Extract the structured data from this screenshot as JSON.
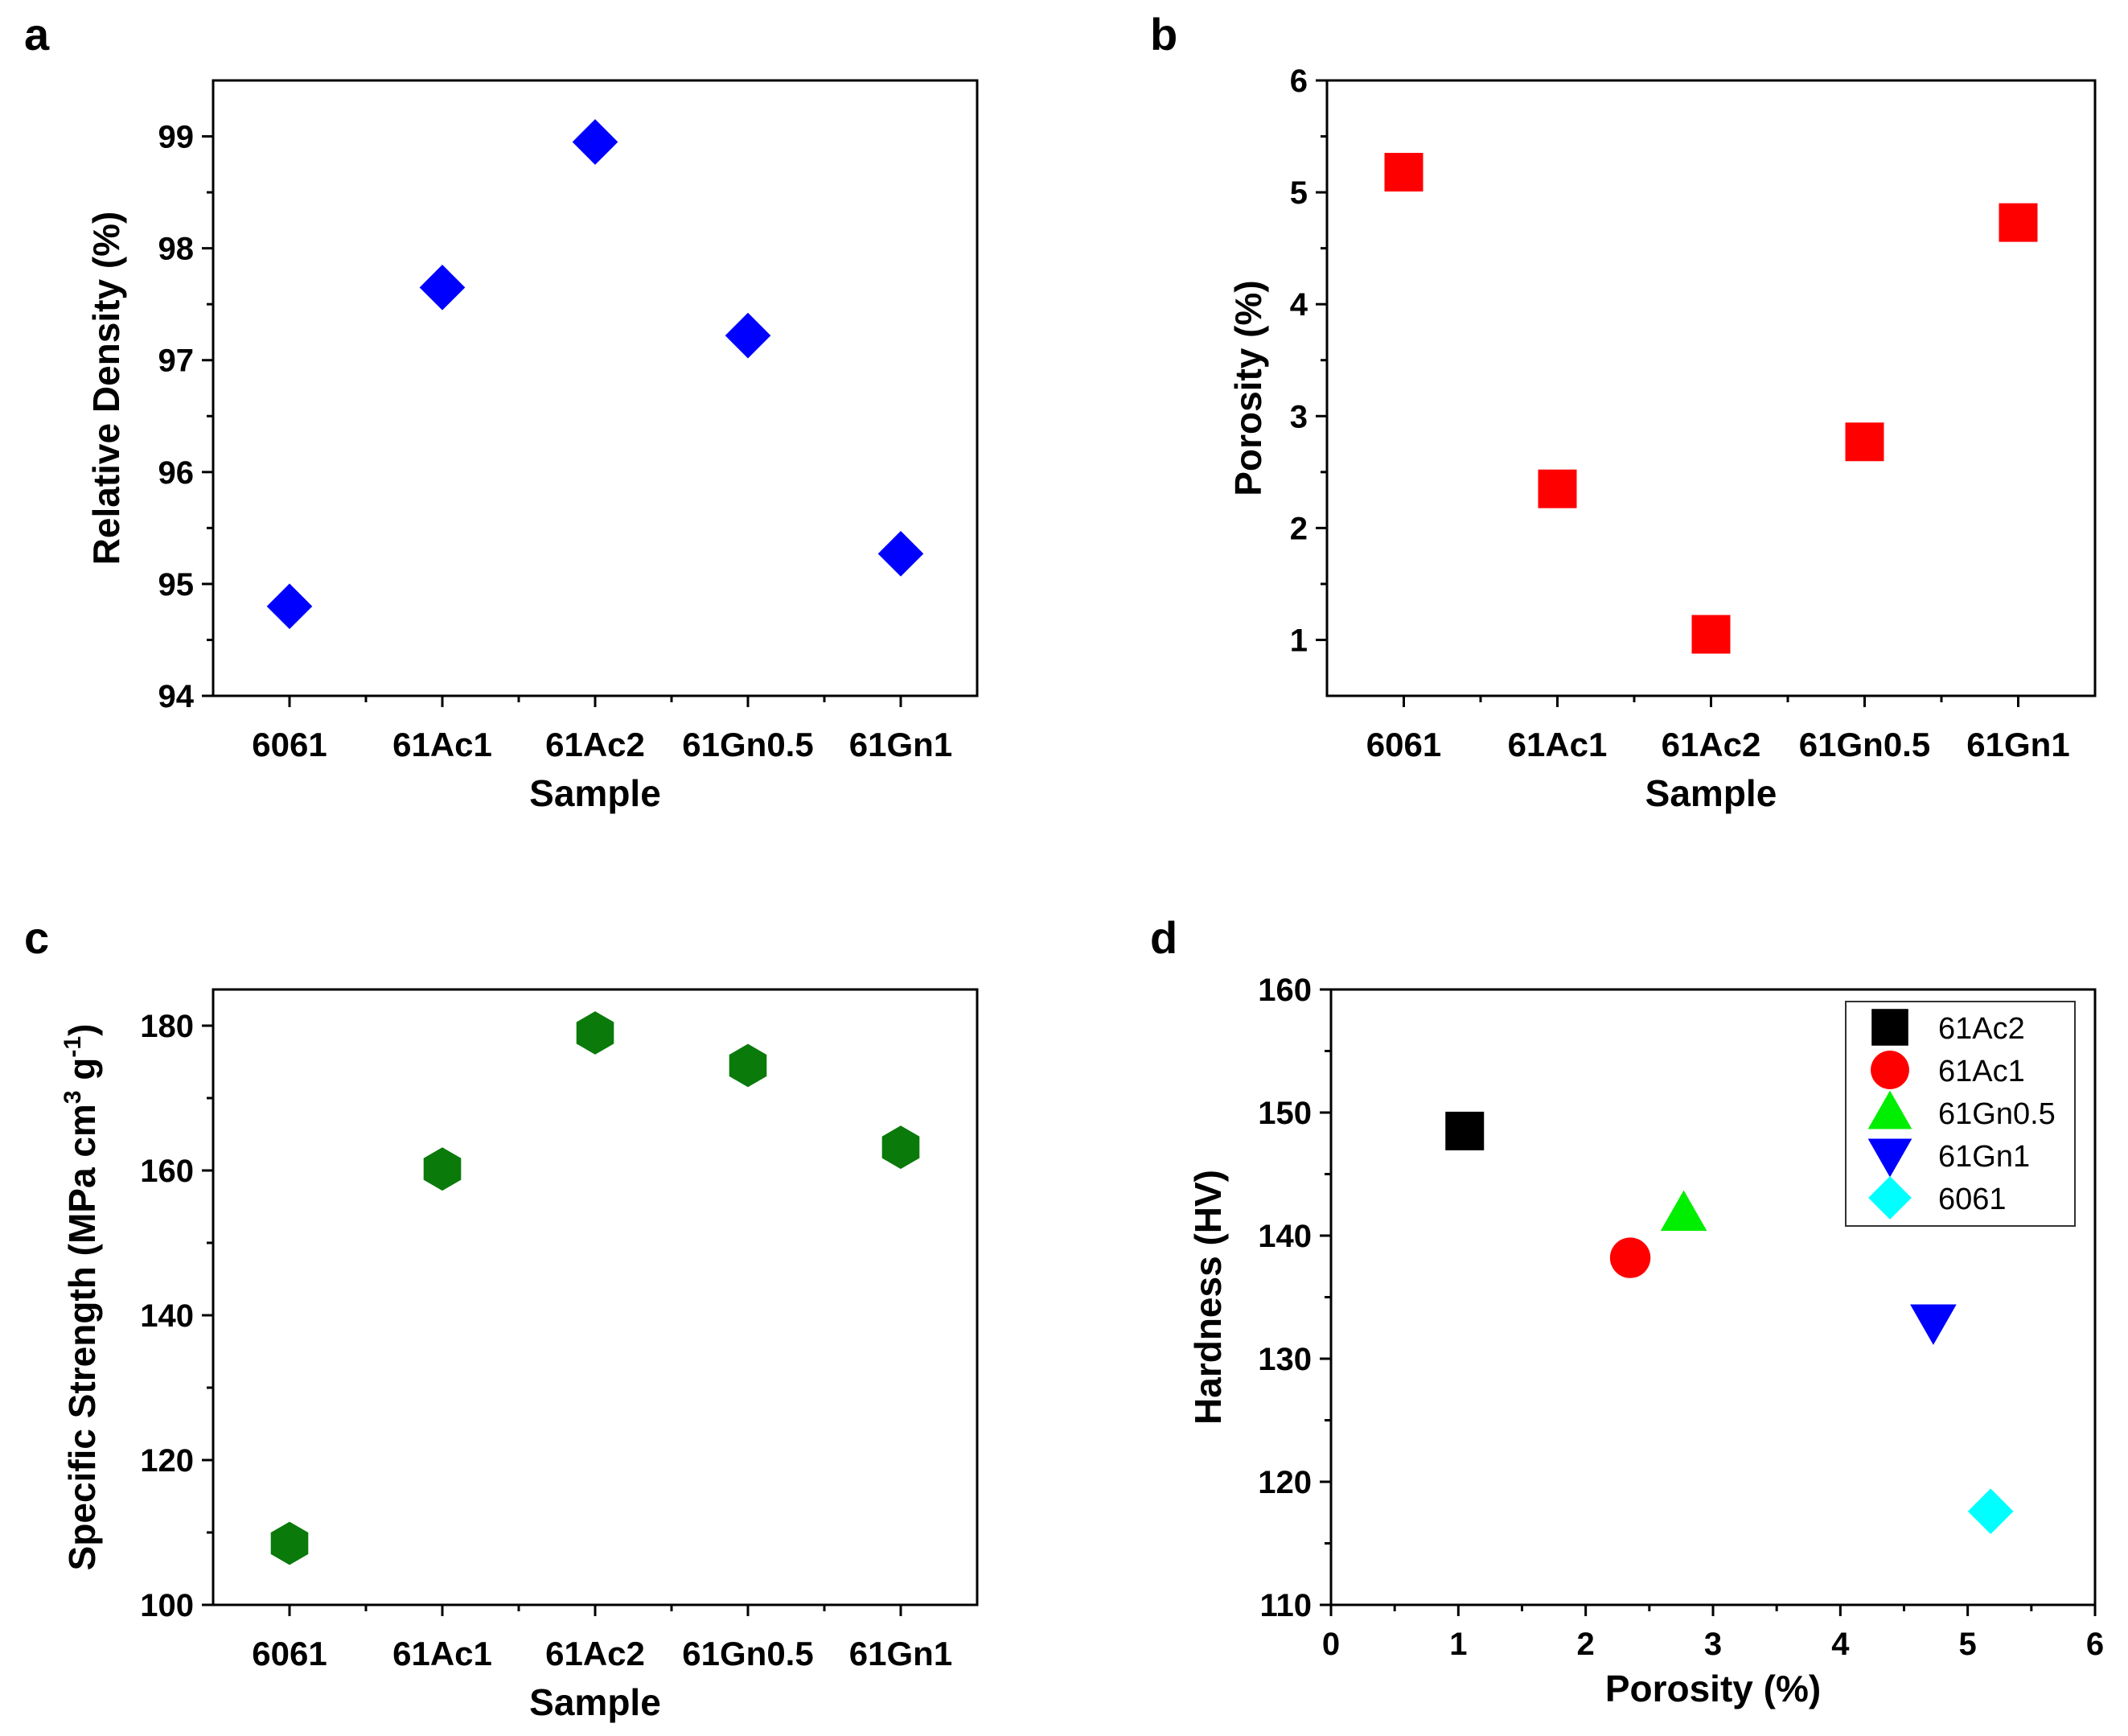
{
  "chart_data": [
    {
      "panel": "a",
      "type": "scatter",
      "marker": "diamond",
      "color": "#0000ff",
      "categories": [
        "6061",
        "61Ac1",
        "61Ac2",
        "61Gn0.5",
        "61Gn1"
      ],
      "values": [
        94.8,
        97.65,
        98.95,
        97.22,
        95.27
      ],
      "xlabel": "Sample",
      "ylabel": "Relative Density (%)",
      "ylim": [
        94,
        99.5
      ],
      "yticks": [
        94,
        95,
        96,
        97,
        98,
        99
      ]
    },
    {
      "panel": "b",
      "type": "scatter",
      "marker": "square",
      "color": "#ff0000",
      "categories": [
        "6061",
        "61Ac1",
        "61Ac2",
        "61Gn0.5",
        "61Gn1"
      ],
      "values": [
        5.18,
        2.35,
        1.05,
        2.77,
        4.73
      ],
      "xlabel": "Sample",
      "ylabel": "Porosity (%)",
      "ylim": [
        0.5,
        6
      ],
      "yticks": [
        1,
        2,
        3,
        4,
        5,
        6
      ]
    },
    {
      "panel": "c",
      "type": "scatter",
      "marker": "hexagon",
      "color": "#0a7a0a",
      "categories": [
        "6061",
        "61Ac1",
        "61Ac2",
        "61Gn0.5",
        "61Gn1"
      ],
      "values": [
        108.5,
        160.2,
        179.0,
        174.5,
        163.2
      ],
      "xlabel": "Sample",
      "ylabel": "Specific Strength (MPa cm3 g-1)",
      "ylabel_parts": {
        "pre": "Specific Strength (MPa cm",
        "sup1": "3",
        "mid": " g",
        "sup2": "-1",
        "post": ")"
      },
      "ylim": [
        100,
        185
      ],
      "yticks": [
        100,
        120,
        140,
        160,
        180
      ]
    },
    {
      "panel": "d",
      "type": "scatter",
      "xlabel": "Porosity (%)",
      "ylabel": "Hardness (HV)",
      "xlim": [
        0,
        6
      ],
      "ylim": [
        110,
        160
      ],
      "xticks": [
        0,
        1,
        2,
        3,
        4,
        5,
        6
      ],
      "yticks": [
        110,
        120,
        130,
        140,
        150,
        160
      ],
      "legend_position": "top-right",
      "series": [
        {
          "name": "61Ac2",
          "marker": "square",
          "color": "#000000",
          "x": 1.05,
          "y": 148.5
        },
        {
          "name": "61Ac1",
          "marker": "circle",
          "color": "#ff0000",
          "x": 2.35,
          "y": 138.2
        },
        {
          "name": "61Gn0.5",
          "marker": "triangle-up",
          "color": "#00ee00",
          "x": 2.77,
          "y": 141.8
        },
        {
          "name": "61Gn1",
          "marker": "triangle-down",
          "color": "#0000ff",
          "x": 4.73,
          "y": 133.0
        },
        {
          "name": "6061",
          "marker": "diamond",
          "color": "#00ffff",
          "x": 5.18,
          "y": 117.6
        }
      ]
    }
  ]
}
